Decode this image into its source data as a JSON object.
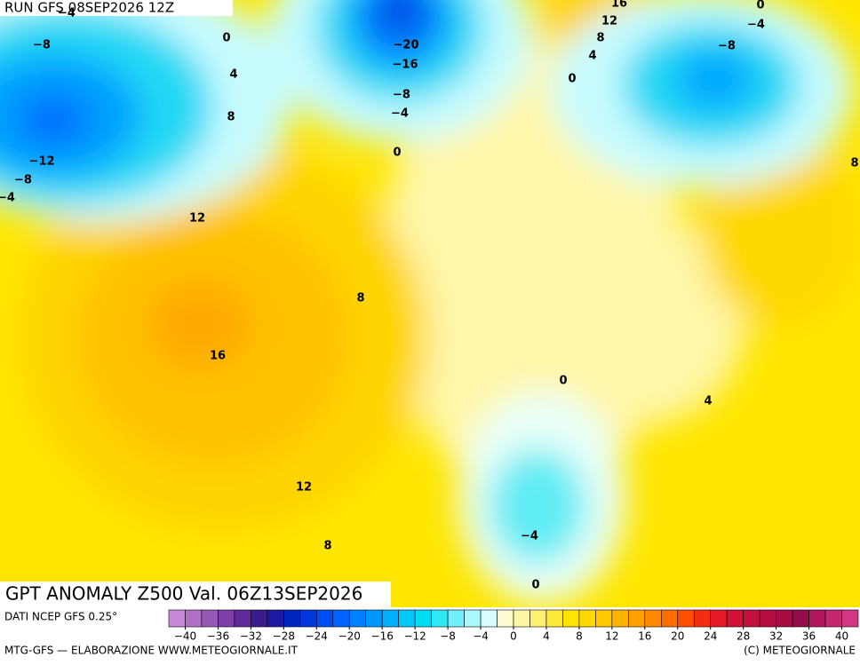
{
  "header": {
    "run": "RUN GFS 08SEP2026 12Z"
  },
  "map": {
    "title": "GPT ANOMALY Z500 Val. 06Z13SEP2026",
    "contour_labels": [
      "−4",
      "−8",
      "0",
      "4",
      "8",
      "−12",
      "−8",
      "−4",
      "12",
      "16",
      "8",
      "12",
      "8",
      "−20",
      "−16",
      "−8",
      "−4",
      "0",
      "16",
      "12",
      "8",
      "4",
      "0",
      "0",
      "−4",
      "−8",
      "8",
      "0",
      "4",
      "−4",
      "0"
    ]
  },
  "legend": {
    "source": "DATI NCEP GFS 0.25°",
    "range": [
      -42,
      42
    ],
    "colors": [
      "#c88ad8",
      "#b070c8",
      "#9858b8",
      "#7e40a8",
      "#602a98",
      "#3a1c8c",
      "#1c1aa0",
      "#0024c0",
      "#0038dc",
      "#004cf0",
      "#0064ff",
      "#0080ff",
      "#0098ff",
      "#00b0ff",
      "#00c8f8",
      "#00dcf4",
      "#30e8f4",
      "#70f0f8",
      "#a8f8fc",
      "#d8fcff",
      "#fffbd0",
      "#fff6a0",
      "#fff070",
      "#ffea38",
      "#ffe400",
      "#ffd800",
      "#ffc800",
      "#ffb400",
      "#ffa000",
      "#ff8800",
      "#ff6c00",
      "#ff4c00",
      "#f42c10",
      "#e41828",
      "#d41034",
      "#c4103c",
      "#b40c40",
      "#a40c44",
      "#940c48",
      "#b4185c",
      "#c42870",
      "#d03884"
    ],
    "ticks": [
      {
        "value": -40,
        "label": "−40"
      },
      {
        "value": -36,
        "label": "−36"
      },
      {
        "value": -32,
        "label": "−32"
      },
      {
        "value": -28,
        "label": "−28"
      },
      {
        "value": -24,
        "label": "−24"
      },
      {
        "value": -20,
        "label": "−20"
      },
      {
        "value": -16,
        "label": "−16"
      },
      {
        "value": -12,
        "label": "−12"
      },
      {
        "value": -8,
        "label": "−8"
      },
      {
        "value": -4,
        "label": "−4"
      },
      0,
      4,
      8,
      12,
      16,
      20,
      24,
      28,
      32,
      36,
      40
    ]
  },
  "footer": {
    "left": "MTG-GFS — ELABORAZIONE WWW.METEOGIORNALE.IT",
    "right": "(C) METEOGIORNALE"
  }
}
